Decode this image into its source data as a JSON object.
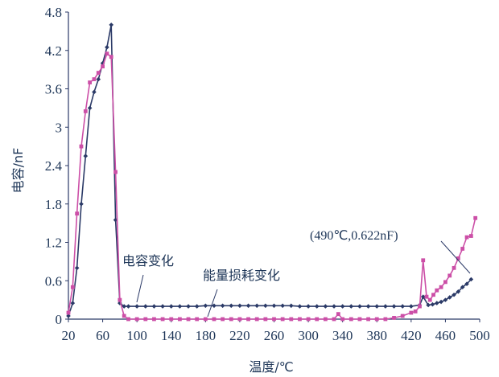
{
  "chart_data": {
    "type": "line",
    "xlabel": "温度/℃",
    "ylabel": "电容/nF",
    "xlim": [
      20,
      500
    ],
    "ylim": [
      0,
      4.8
    ],
    "x_ticks": [
      "20",
      "60",
      "100",
      "140",
      "180",
      "220",
      "260",
      "300",
      "340",
      "380",
      "420",
      "460",
      "500"
    ],
    "y_ticks": [
      "0",
      "0.6",
      "1.2",
      "1.8",
      "2.4",
      "3",
      "3.6",
      "4.2",
      "4.8"
    ],
    "grid": false,
    "legend": "none",
    "series": [
      {
        "name": "电容变化",
        "color": "#2b3a67",
        "marker": "diamond",
        "points": [
          [
            20,
            0.05
          ],
          [
            25,
            0.25
          ],
          [
            30,
            0.8
          ],
          [
            35,
            1.8
          ],
          [
            40,
            2.55
          ],
          [
            45,
            3.3
          ],
          [
            50,
            3.55
          ],
          [
            55,
            3.75
          ],
          [
            60,
            4.0
          ],
          [
            65,
            4.25
          ],
          [
            70,
            4.6
          ],
          [
            75,
            1.55
          ],
          [
            80,
            0.25
          ],
          [
            85,
            0.2
          ],
          [
            90,
            0.2
          ],
          [
            100,
            0.2
          ],
          [
            110,
            0.2
          ],
          [
            120,
            0.2
          ],
          [
            130,
            0.2
          ],
          [
            140,
            0.2
          ],
          [
            150,
            0.2
          ],
          [
            160,
            0.2
          ],
          [
            170,
            0.2
          ],
          [
            180,
            0.21
          ],
          [
            190,
            0.21
          ],
          [
            200,
            0.21
          ],
          [
            210,
            0.21
          ],
          [
            220,
            0.21
          ],
          [
            230,
            0.21
          ],
          [
            240,
            0.21
          ],
          [
            250,
            0.21
          ],
          [
            260,
            0.21
          ],
          [
            270,
            0.21
          ],
          [
            280,
            0.21
          ],
          [
            290,
            0.2
          ],
          [
            300,
            0.2
          ],
          [
            310,
            0.2
          ],
          [
            320,
            0.2
          ],
          [
            330,
            0.2
          ],
          [
            340,
            0.2
          ],
          [
            350,
            0.2
          ],
          [
            360,
            0.2
          ],
          [
            370,
            0.2
          ],
          [
            380,
            0.2
          ],
          [
            390,
            0.2
          ],
          [
            400,
            0.2
          ],
          [
            410,
            0.2
          ],
          [
            420,
            0.2
          ],
          [
            430,
            0.22
          ],
          [
            434,
            0.35
          ],
          [
            440,
            0.22
          ],
          [
            445,
            0.23
          ],
          [
            450,
            0.25
          ],
          [
            455,
            0.27
          ],
          [
            460,
            0.3
          ],
          [
            465,
            0.34
          ],
          [
            470,
            0.38
          ],
          [
            475,
            0.43
          ],
          [
            480,
            0.5
          ],
          [
            485,
            0.55
          ],
          [
            490,
            0.622
          ]
        ]
      },
      {
        "name": "能量损耗变化",
        "color": "#cc4fa7",
        "marker": "square",
        "points": [
          [
            20,
            0.1
          ],
          [
            25,
            0.5
          ],
          [
            30,
            1.65
          ],
          [
            35,
            2.7
          ],
          [
            40,
            3.25
          ],
          [
            45,
            3.7
          ],
          [
            50,
            3.75
          ],
          [
            55,
            3.85
          ],
          [
            60,
            3.95
          ],
          [
            65,
            4.15
          ],
          [
            70,
            4.1
          ],
          [
            75,
            2.3
          ],
          [
            80,
            0.3
          ],
          [
            85,
            0.05
          ],
          [
            90,
            0.0
          ],
          [
            100,
            0.0
          ],
          [
            110,
            0.0
          ],
          [
            120,
            0.0
          ],
          [
            130,
            0.0
          ],
          [
            140,
            0.0
          ],
          [
            150,
            0.0
          ],
          [
            160,
            0.0
          ],
          [
            170,
            0.0
          ],
          [
            180,
            0.0
          ],
          [
            190,
            0.0
          ],
          [
            200,
            0.0
          ],
          [
            210,
            0.0
          ],
          [
            220,
            0.0
          ],
          [
            230,
            0.0
          ],
          [
            240,
            0.0
          ],
          [
            250,
            0.0
          ],
          [
            260,
            0.0
          ],
          [
            270,
            0.0
          ],
          [
            280,
            0.0
          ],
          [
            290,
            0.0
          ],
          [
            300,
            0.0
          ],
          [
            310,
            0.0
          ],
          [
            320,
            0.0
          ],
          [
            330,
            0.0
          ],
          [
            335,
            0.08
          ],
          [
            340,
            0.0
          ],
          [
            350,
            0.0
          ],
          [
            360,
            0.0
          ],
          [
            370,
            0.0
          ],
          [
            380,
            0.0
          ],
          [
            390,
            0.0
          ],
          [
            400,
            0.02
          ],
          [
            410,
            0.05
          ],
          [
            420,
            0.1
          ],
          [
            425,
            0.12
          ],
          [
            430,
            0.2
          ],
          [
            434,
            0.92
          ],
          [
            438,
            0.35
          ],
          [
            442,
            0.3
          ],
          [
            446,
            0.38
          ],
          [
            450,
            0.45
          ],
          [
            455,
            0.5
          ],
          [
            460,
            0.58
          ],
          [
            465,
            0.68
          ],
          [
            470,
            0.8
          ],
          [
            475,
            0.95
          ],
          [
            480,
            1.1
          ],
          [
            485,
            1.28
          ],
          [
            490,
            1.3
          ],
          [
            495,
            1.58
          ]
        ]
      }
    ],
    "annotations": {
      "label_capacitance": "电容变化",
      "label_energy_loss": "能量损耗变化",
      "point_label_part1": "(490",
      "point_label_part2": "℃",
      "point_label_part3": ",0.622nF)"
    }
  }
}
